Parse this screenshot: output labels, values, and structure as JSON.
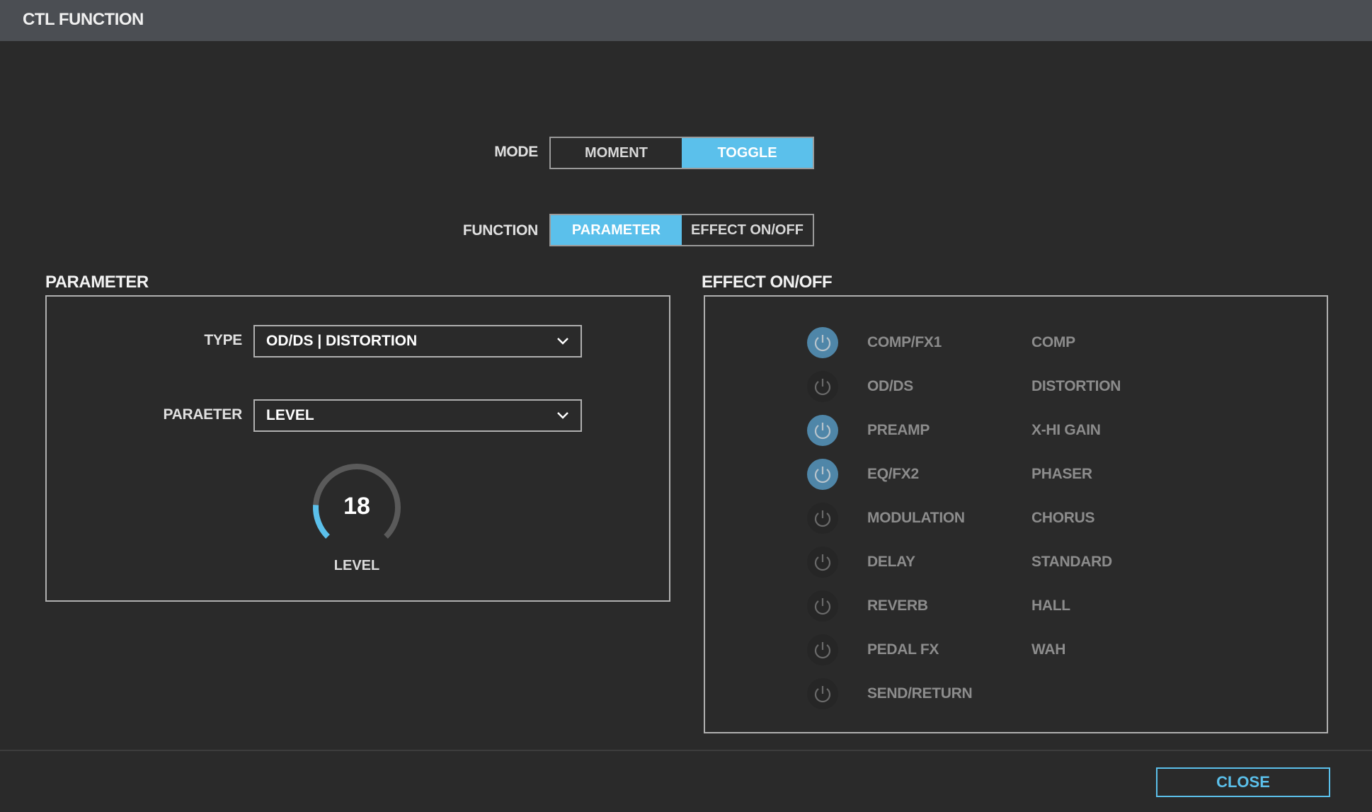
{
  "title": "CTL FUNCTION",
  "mode": {
    "label": "MODE",
    "options": [
      "MOMENT",
      "TOGGLE"
    ],
    "selected": "TOGGLE"
  },
  "function": {
    "label": "FUNCTION",
    "options": [
      "PARAMETER",
      "EFFECT ON/OFF"
    ],
    "selected": "PARAMETER"
  },
  "parameter": {
    "heading": "PARAMETER",
    "type_label": "TYPE",
    "type_value": "OD/DS | DISTORTION",
    "param_label": "PARAETER",
    "param_value": "LEVEL",
    "knob": {
      "value": "18",
      "label": "LEVEL",
      "fraction": 0.18
    }
  },
  "effects": {
    "heading": "EFFECT ON/OFF",
    "rows": [
      {
        "name": "COMP/FX1",
        "type": "COMP",
        "on": true
      },
      {
        "name": "OD/DS",
        "type": "DISTORTION",
        "on": false
      },
      {
        "name": "PREAMP",
        "type": "X-HI GAIN",
        "on": true
      },
      {
        "name": "EQ/FX2",
        "type": "PHASER",
        "on": true
      },
      {
        "name": "MODULATION",
        "type": "CHORUS",
        "on": false
      },
      {
        "name": "DELAY",
        "type": "STANDARD",
        "on": false
      },
      {
        "name": "REVERB",
        "type": "HALL",
        "on": false
      },
      {
        "name": "PEDAL FX",
        "type": "WAH",
        "on": false
      },
      {
        "name": "SEND/RETURN",
        "type": "",
        "on": false
      }
    ]
  },
  "close_label": "CLOSE",
  "colors": {
    "accent": "#5bc0eb",
    "power_on": "#4f86a8",
    "title_bar": "#4b4e53",
    "background": "#2a2a2a"
  }
}
